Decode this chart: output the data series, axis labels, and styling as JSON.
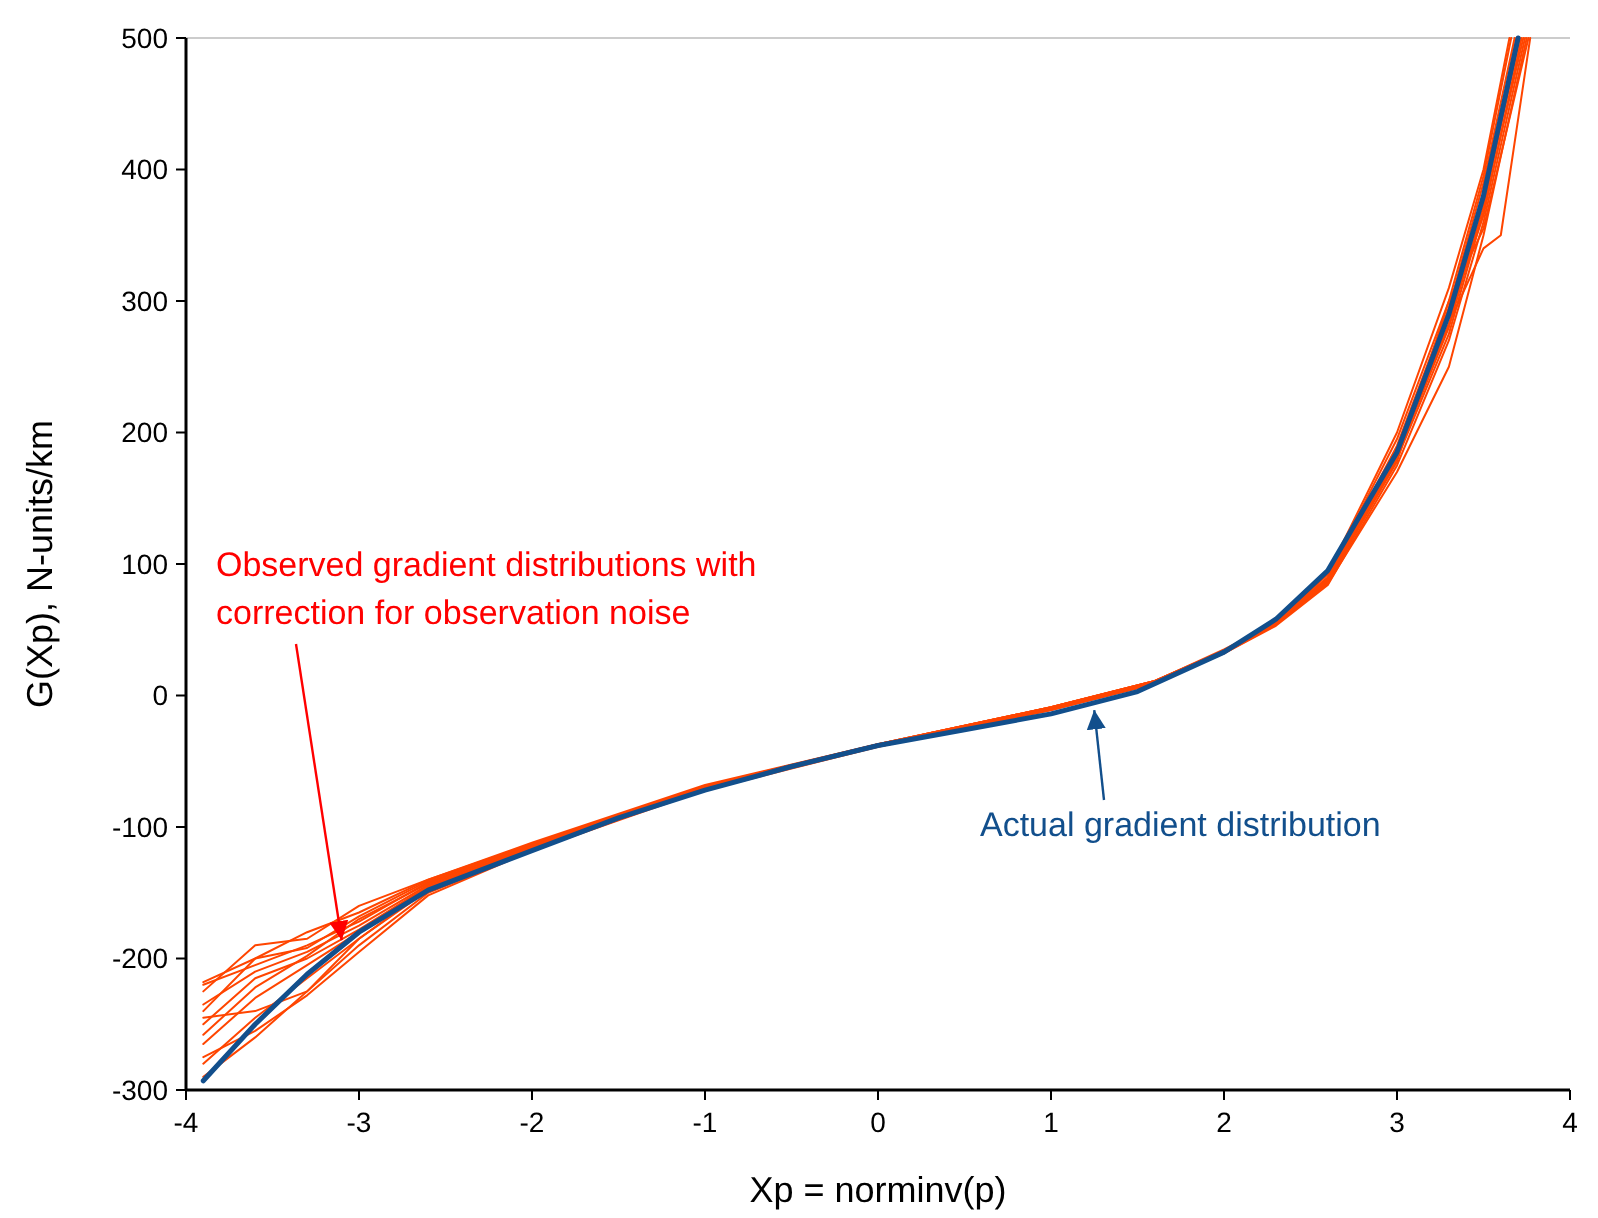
{
  "chart_data": {
    "type": "line",
    "xlabel": "Xp = norminv(p)",
    "ylabel": "G(Xp), N-units/km",
    "xlim": [
      -4,
      4
    ],
    "xticks": [
      -4,
      -3,
      -2,
      -1,
      0,
      1,
      2,
      3,
      4
    ],
    "ylim": [
      -300,
      500
    ],
    "yticks": [
      -300,
      -200,
      -100,
      0,
      100,
      200,
      300,
      400,
      500
    ],
    "grid": false,
    "marker": "none",
    "line_style": "solid",
    "series": [
      {
        "color": "#ff4500",
        "x": [
          -3.9,
          -3.6,
          -3.3,
          -3.0,
          -2.6,
          -2.0,
          -1.0,
          0,
          1,
          1.6,
          2.0,
          2.3,
          2.6,
          3.0,
          3.3,
          3.5,
          3.68
        ],
        "values": [
          -220,
          -205,
          -190,
          -172,
          -142,
          -114,
          -69,
          -37,
          -9,
          11,
          34,
          56,
          90,
          190,
          295,
          390,
          500
        ]
      },
      {
        "color": "#ff4500",
        "x": [
          -3.9,
          -3.6,
          -3.3,
          -3.0,
          -2.6,
          -2.0,
          -1.0,
          0,
          1,
          1.6,
          2.0,
          2.3,
          2.6,
          3.0,
          3.3,
          3.5,
          3.71
        ],
        "values": [
          -235,
          -210,
          -195,
          -175,
          -144,
          -115,
          -70,
          -38,
          -10,
          10,
          33,
          55,
          87,
          182,
          280,
          372,
          500
        ]
      },
      {
        "color": "#ff4500",
        "x": [
          -3.9,
          -3.6,
          -3.3,
          -3.0,
          -2.6,
          -2.0,
          -1.0,
          0,
          1,
          1.6,
          2.0,
          2.3,
          2.6,
          3.0,
          3.3,
          3.5,
          3.74
        ],
        "values": [
          -250,
          -215,
          -200,
          -178,
          -145,
          -116,
          -70,
          -38,
          -10,
          10,
          32,
          53,
          84,
          175,
          270,
          360,
          500
        ]
      },
      {
        "color": "#ff4500",
        "x": [
          -3.9,
          -3.6,
          -3.3,
          -3.0,
          -2.6,
          -2.0,
          -1.0,
          0,
          1,
          1.6,
          2.0,
          2.3,
          2.6,
          3.0,
          3.3,
          3.5,
          3.76
        ],
        "values": [
          -265,
          -230,
          -205,
          -180,
          -146,
          -116,
          -71,
          -38,
          -10,
          9,
          32,
          54,
          86,
          178,
          300,
          355,
          500
        ]
      },
      {
        "color": "#ff4500",
        "x": [
          -3.9,
          -3.6,
          -3.3,
          -3.0,
          -2.6,
          -2.0,
          -1.0,
          0,
          1,
          1.6,
          2.0,
          2.3,
          2.6,
          3.0,
          3.3,
          3.5,
          3.66
        ],
        "values": [
          -280,
          -245,
          -215,
          -185,
          -148,
          -117,
          -71,
          -39,
          -11,
          9,
          33,
          56,
          92,
          195,
          300,
          395,
          500
        ]
      },
      {
        "color": "#ff4500",
        "x": [
          -3.9,
          -3.6,
          -3.3,
          -3.0,
          -2.6,
          -2.0,
          -1.0,
          0,
          1,
          1.6,
          2.0,
          2.3,
          2.6,
          3.0,
          3.3,
          3.5,
          3.65
        ],
        "values": [
          -290,
          -260,
          -225,
          -190,
          -150,
          -118,
          -72,
          -39,
          -11,
          9,
          34,
          57,
          93,
          200,
          310,
          400,
          500
        ]
      },
      {
        "color": "#ff4500",
        "x": [
          -3.9,
          -3.6,
          -3.3,
          -3.0,
          -2.6,
          -2.0,
          -1.0,
          0,
          1,
          1.6,
          2.0,
          2.3,
          2.6,
          3.0,
          3.3,
          3.5,
          3.75
        ],
        "values": [
          -225,
          -190,
          -185,
          -160,
          -140,
          -112,
          -68,
          -37,
          -9,
          11,
          35,
          55,
          85,
          170,
          250,
          350,
          500
        ]
      },
      {
        "color": "#ff4500",
        "x": [
          -3.9,
          -3.6,
          -3.3,
          -3.0,
          -2.6,
          -2.0,
          -1.0,
          0,
          1,
          1.6,
          2.0,
          2.3,
          2.6,
          3.0,
          3.3,
          3.5,
          3.7
        ],
        "values": [
          -245,
          -240,
          -225,
          -185,
          -147,
          -115,
          -70,
          -38,
          -10,
          10,
          33,
          54,
          88,
          188,
          290,
          380,
          500
        ]
      },
      {
        "color": "#ff4500",
        "x": [
          -3.9,
          -3.6,
          -3.3,
          -3.0,
          -2.6,
          -2.0,
          -1.0,
          0,
          1,
          1.6,
          2.0,
          2.3,
          2.6,
          3.0,
          3.3,
          3.5,
          3.72
        ],
        "values": [
          -218,
          -200,
          -180,
          -165,
          -140,
          -113,
          -69,
          -37,
          -9,
          11,
          34,
          56,
          89,
          186,
          288,
          365,
          500
        ]
      },
      {
        "color": "#ff4500",
        "x": [
          -3.9,
          -3.6,
          -3.3,
          -3.0,
          -2.6,
          -2.0,
          -1.0,
          0,
          1,
          1.6,
          2.0,
          2.3,
          2.6,
          3.0,
          3.3,
          3.5,
          3.73
        ],
        "values": [
          -258,
          -222,
          -198,
          -170,
          -143,
          -114,
          -70,
          -38,
          -10,
          10,
          33,
          55,
          86,
          180,
          275,
          368,
          500
        ]
      },
      {
        "color": "#ff4500",
        "x": [
          -3.9,
          -3.6,
          -3.3,
          -3.0,
          -2.6,
          -2.0,
          -1.0,
          0,
          1,
          1.6,
          2.0,
          2.3,
          2.6,
          3.0,
          3.3,
          3.5,
          3.69
        ],
        "values": [
          -275,
          -255,
          -228,
          -195,
          -152,
          -118,
          -71,
          -38,
          -10,
          10,
          33,
          55,
          87,
          184,
          282,
          378,
          500
        ]
      },
      {
        "color": "#ff4500",
        "x": [
          -3.9,
          -3.6,
          -3.3,
          -3.0,
          -2.6,
          -2.0,
          -1.0,
          0,
          1,
          1.6,
          2.0,
          2.3,
          2.6,
          3.0,
          3.3,
          3.5,
          3.6,
          3.77
        ],
        "values": [
          -240,
          -200,
          -192,
          -168,
          -141,
          -113,
          -69,
          -37,
          -9,
          11,
          34,
          55,
          88,
          183,
          283,
          340,
          350,
          500
        ]
      },
      {
        "color": "#124f8c",
        "x": [
          -3.9,
          -3.6,
          -3.3,
          -3.0,
          -2.6,
          -2.0,
          -1.5,
          -1.0,
          -0.5,
          0,
          0.5,
          1.0,
          1.5,
          2.0,
          2.3,
          2.6,
          3.0,
          3.3,
          3.5,
          3.7
        ],
        "values": [
          -293,
          -250,
          -212,
          -180,
          -148,
          -118,
          -93,
          -72,
          -54,
          -38,
          -26,
          -14,
          3,
          33,
          58,
          95,
          185,
          290,
          380,
          500
        ]
      }
    ],
    "annotations": [
      {
        "text": "Observed gradient distributions with correction for observation noise",
        "x": -3.1,
        "y": -180
      },
      {
        "text": "Actual gradient distribution",
        "x": 1.25,
        "y": -5
      }
    ]
  }
}
